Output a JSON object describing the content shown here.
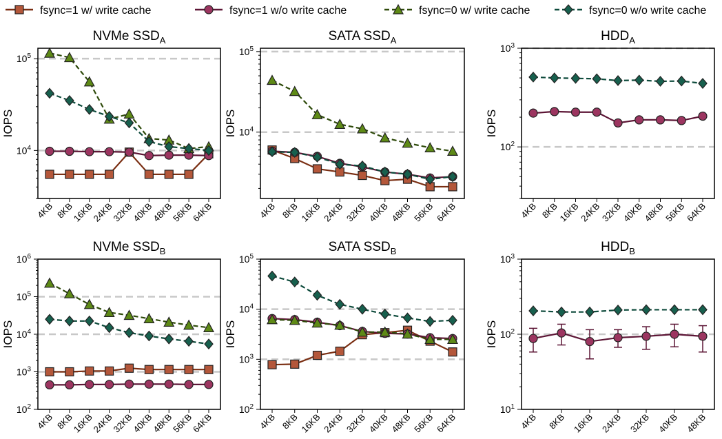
{
  "legend": {
    "placement": "top",
    "items": [
      {
        "label": "fsync=1 w/ write cache",
        "color": "#b4573a",
        "marker": "square",
        "dashed": false
      },
      {
        "label": "fsync=1 w/o write cache",
        "color": "#9c3560",
        "marker": "circle",
        "dashed": false
      },
      {
        "label": "fsync=0 w/ write cache",
        "color": "#4a6b12",
        "marker": "triangle",
        "dashed": true
      },
      {
        "label": "fsync=0 w/o write cache",
        "color": "#17604e",
        "marker": "diamond",
        "dashed": true
      }
    ]
  },
  "styles": {
    "s1_line": "#7a2e12",
    "s1_marker": "#b4573a",
    "s2_line": "#5c1535",
    "s2_marker": "#9c3560",
    "s3_line": "#2e4a0a",
    "s3_marker": "#5e8a16",
    "s4_line": "#0d4a3b",
    "s4_marker": "#17604e",
    "gridline": "#c8c8c8"
  },
  "chart_data": [
    {
      "type": "line",
      "title": "NVMe SSD",
      "title_sub": "A",
      "ylabel": "IOPS",
      "yscale": "log",
      "ylim": [
        3000,
        130000
      ],
      "yticks": [
        10000,
        100000
      ],
      "yticklabels": [
        [
          "10",
          "4"
        ],
        [
          "10",
          "5"
        ]
      ],
      "grid_y": [
        10000,
        100000
      ],
      "categories": [
        "4KB",
        "8KB",
        "16KB",
        "24KB",
        "32KB",
        "40KB",
        "48KB",
        "56KB",
        "64KB"
      ],
      "series": [
        {
          "values": [
            5500,
            5500,
            5500,
            5500,
            9600,
            5500,
            5500,
            5500,
            9200
          ]
        },
        {
          "values": [
            9800,
            9800,
            9700,
            9700,
            9600,
            8800,
            8900,
            8900,
            8800
          ]
        },
        {
          "values": [
            115000,
            103000,
            56000,
            22000,
            25000,
            13500,
            13000,
            10500,
            11000
          ]
        },
        {
          "values": [
            42000,
            35000,
            28000,
            23500,
            20000,
            12500,
            11000,
            10500,
            10000
          ]
        }
      ]
    },
    {
      "type": "line",
      "title": "SATA SSD",
      "title_sub": "A",
      "ylabel": "IOPS",
      "yscale": "log",
      "ylim": [
        1500,
        110000
      ],
      "yticks": [
        10000,
        100000
      ],
      "yticklabels": [
        [
          "10",
          "4"
        ],
        [
          "10",
          "5"
        ]
      ],
      "grid_y": [
        10000,
        100000
      ],
      "categories": [
        "4KB",
        "8KB",
        "16KB",
        "24KB",
        "32KB",
        "40KB",
        "48KB",
        "56KB",
        "64KB"
      ],
      "series": [
        {
          "values": [
            6000,
            4700,
            3500,
            3200,
            2900,
            2500,
            2600,
            2100,
            2100
          ]
        },
        {
          "values": [
            5800,
            5600,
            5000,
            4100,
            3700,
            3200,
            3000,
            2700,
            2800
          ]
        },
        {
          "values": [
            44000,
            32000,
            16500,
            12500,
            11000,
            8500,
            7300,
            6400,
            5800
          ]
        },
        {
          "values": [
            5700,
            5600,
            4900,
            4000,
            3800,
            3200,
            3000,
            2600,
            2800
          ]
        }
      ]
    },
    {
      "type": "line",
      "title": "HDD",
      "title_sub": "A",
      "ylabel": "IOPS",
      "yscale": "log",
      "ylim": [
        30,
        1000
      ],
      "yticks": [
        100,
        1000
      ],
      "yticklabels": [
        [
          "10",
          "2"
        ],
        [
          "10",
          "3"
        ]
      ],
      "grid_y": [
        100,
        1000
      ],
      "categories": [
        "4KB",
        "8KB",
        "16KB",
        "24KB",
        "32KB",
        "40KB",
        "48KB",
        "56KB",
        "64KB"
      ],
      "series": [
        null,
        {
          "values": [
            220,
            228,
            225,
            225,
            175,
            188,
            188,
            185,
            205
          ]
        },
        null,
        {
          "values": [
            510,
            500,
            495,
            490,
            470,
            475,
            462,
            465,
            440
          ]
        }
      ]
    },
    {
      "type": "line",
      "title": "NVMe SSD",
      "title_sub": "B",
      "ylabel": "IOPS",
      "yscale": "log",
      "ylim": [
        100,
        1000000
      ],
      "yticks": [
        100,
        1000,
        10000,
        100000,
        1000000
      ],
      "yticklabels": [
        [
          "10",
          "2"
        ],
        [
          "10",
          "3"
        ],
        [
          "10",
          "4"
        ],
        [
          "10",
          "5"
        ],
        [
          "10",
          "6"
        ]
      ],
      "grid_y": [
        1000,
        10000,
        100000
      ],
      "categories": [
        "4KB",
        "8KB",
        "16KB",
        "24KB",
        "32KB",
        "40KB",
        "48KB",
        "56KB",
        "64KB"
      ],
      "series": [
        {
          "values": [
            1000,
            1000,
            1050,
            1050,
            1250,
            1150,
            1150,
            1150,
            1150
          ]
        },
        {
          "values": [
            450,
            450,
            460,
            460,
            470,
            470,
            470,
            460,
            460
          ]
        },
        {
          "values": [
            230000,
            120000,
            62000,
            38000,
            32000,
            26000,
            21000,
            17500,
            15000
          ]
        },
        {
          "values": [
            25000,
            22500,
            22500,
            15000,
            11000,
            9000,
            7500,
            6500,
            5500
          ]
        }
      ]
    },
    {
      "type": "line",
      "title": "SATA SSD",
      "title_sub": "B",
      "ylabel": "IOPS",
      "yscale": "log",
      "ylim": [
        100,
        100000
      ],
      "yticks": [
        100,
        1000,
        10000,
        100000
      ],
      "yticklabels": [
        [
          "10",
          "2"
        ],
        [
          "10",
          "3"
        ],
        [
          "10",
          "4"
        ],
        [
          "10",
          "5"
        ]
      ],
      "grid_y": [
        1000,
        10000
      ],
      "categories": [
        "4KB",
        "8KB",
        "16KB",
        "24KB",
        "32KB",
        "40KB",
        "48KB",
        "56KB",
        "64KB"
      ],
      "series": [
        {
          "values": [
            780,
            800,
            1200,
            1450,
            3100,
            3400,
            3800,
            2300,
            1400
          ]
        },
        {
          "values": [
            6500,
            6200,
            5500,
            4700,
            3600,
            3300,
            3200,
            2700,
            2600
          ]
        },
        {
          "values": [
            6200,
            6000,
            5300,
            4800,
            3500,
            3500,
            3200,
            2500,
            2500
          ]
        },
        {
          "values": [
            46000,
            35000,
            19000,
            12500,
            10000,
            8000,
            6700,
            5700,
            6000
          ]
        }
      ]
    },
    {
      "type": "line",
      "title": "HDD",
      "title_sub": "B",
      "ylabel": "IOPS",
      "yscale": "log",
      "ylim": [
        10,
        1000
      ],
      "yticks": [
        10,
        100,
        1000
      ],
      "yticklabels": [
        [
          "10",
          "1"
        ],
        [
          "10",
          "2"
        ],
        [
          "10",
          "3"
        ]
      ],
      "grid_y": [
        100
      ],
      "categories": [
        "4KB",
        "8KB",
        "16KB",
        "24KB",
        "32KB",
        "40KB",
        "48KB"
      ],
      "series": [
        null,
        {
          "values": [
            88,
            104,
            80,
            90,
            94,
            100,
            94
          ],
          "err_low": [
            58,
            72,
            47,
            67,
            63,
            68,
            58
          ],
          "err_high": [
            120,
            136,
            115,
            115,
            126,
            136,
            130
          ]
        },
        null,
        {
          "values": [
            205,
            198,
            198,
            210,
            212,
            212,
            212
          ]
        }
      ]
    }
  ]
}
